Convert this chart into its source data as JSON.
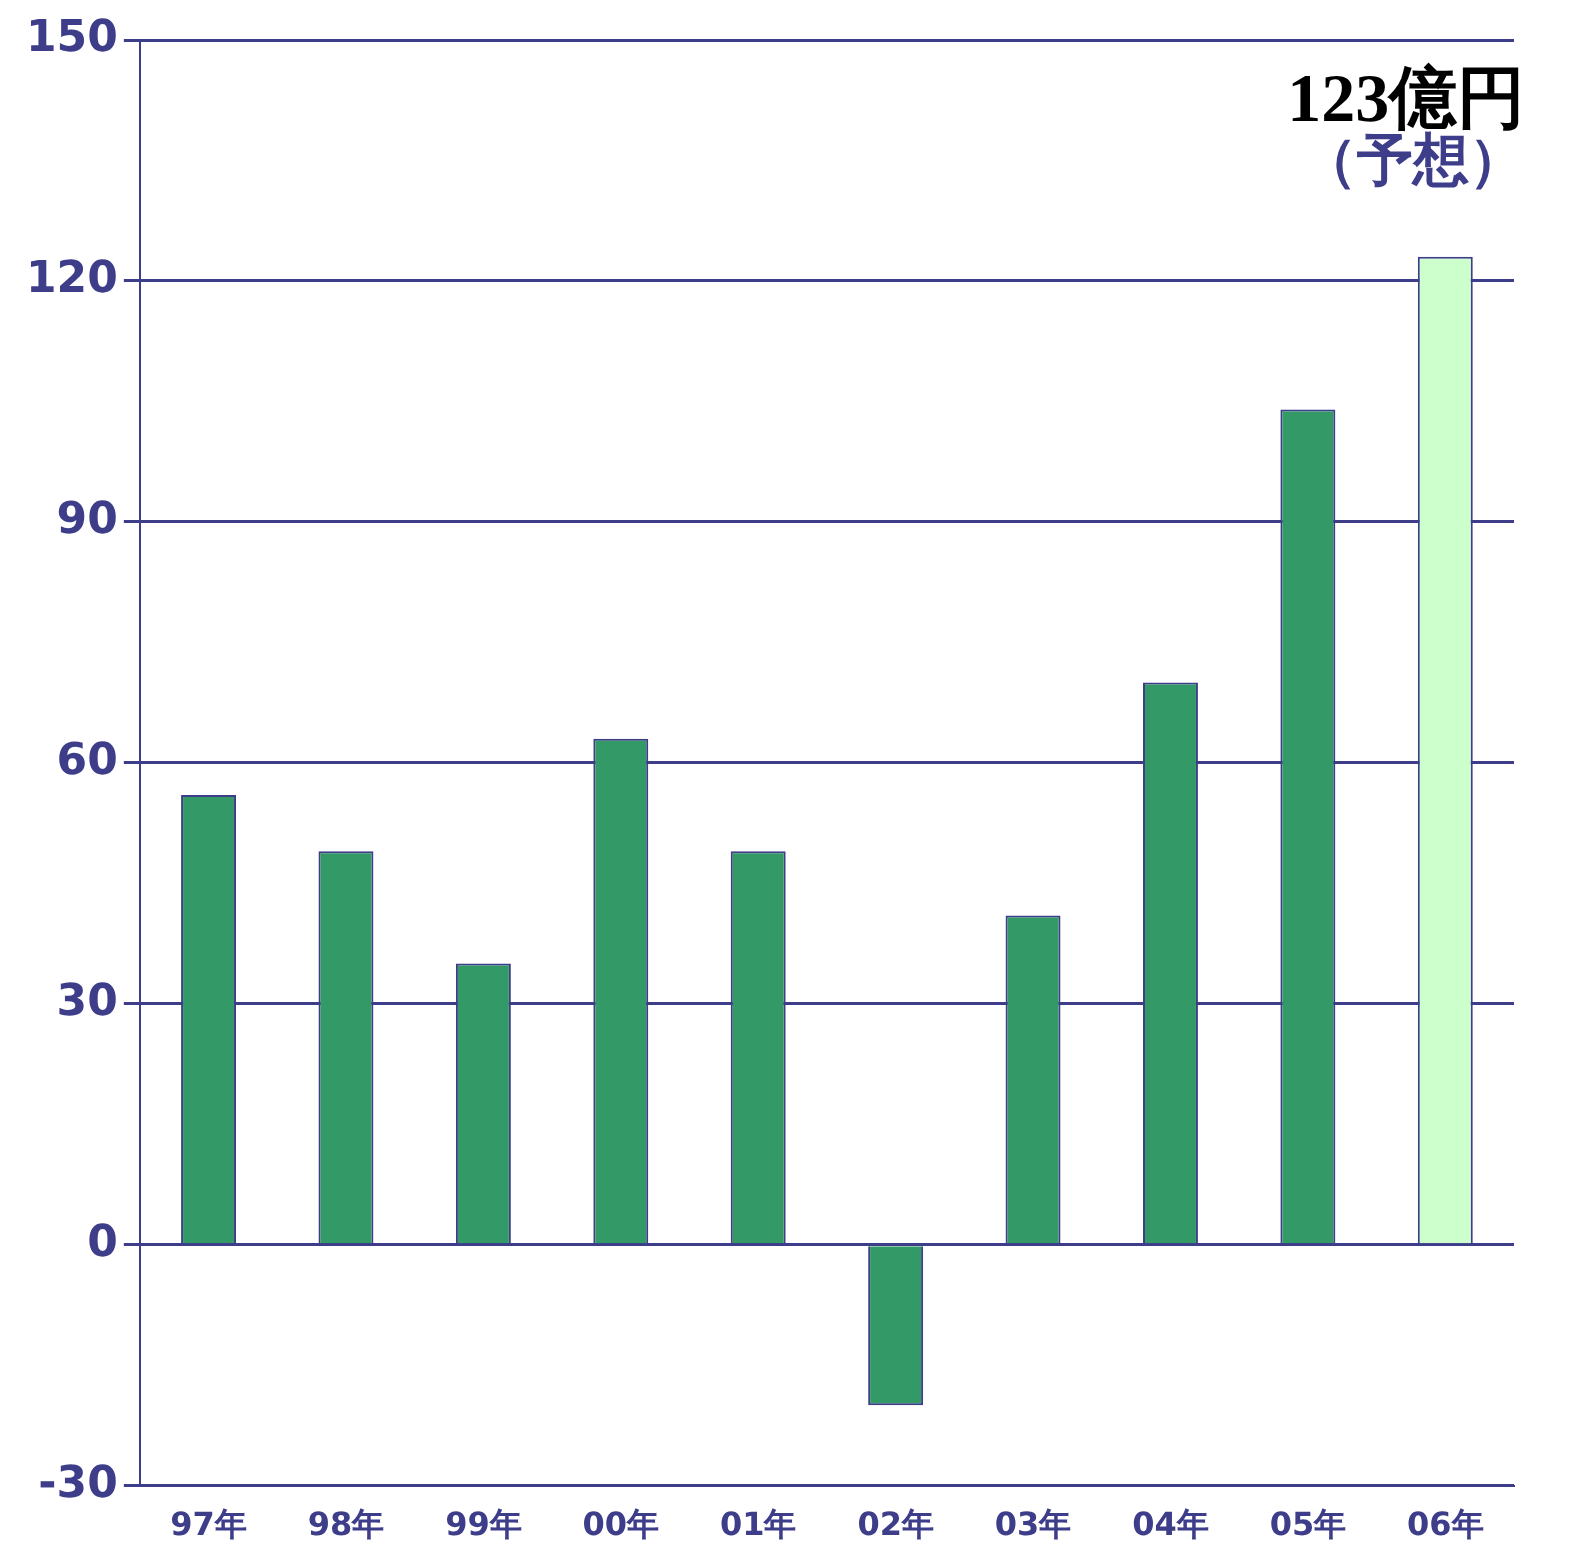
{
  "chart_data": {
    "type": "bar",
    "categories": [
      "97年",
      "98年",
      "99年",
      "00年",
      "01年",
      "02年",
      "03年",
      "04年",
      "05年",
      "06年"
    ],
    "values": [
      56,
      49,
      35,
      63,
      49,
      -20,
      41,
      70,
      104,
      123
    ],
    "colors": [
      "#339966",
      "#339966",
      "#339966",
      "#339966",
      "#339966",
      "#339966",
      "#339966",
      "#339966",
      "#339966",
      "#ccffcc"
    ],
    "ylim": [
      -30,
      150
    ],
    "yticks": [
      -30,
      0,
      30,
      60,
      90,
      120,
      150
    ],
    "grid": "y",
    "annotations": [
      {
        "text": "123億円",
        "x": "06年",
        "y": 123
      },
      "（予想）"
    ]
  }
}
